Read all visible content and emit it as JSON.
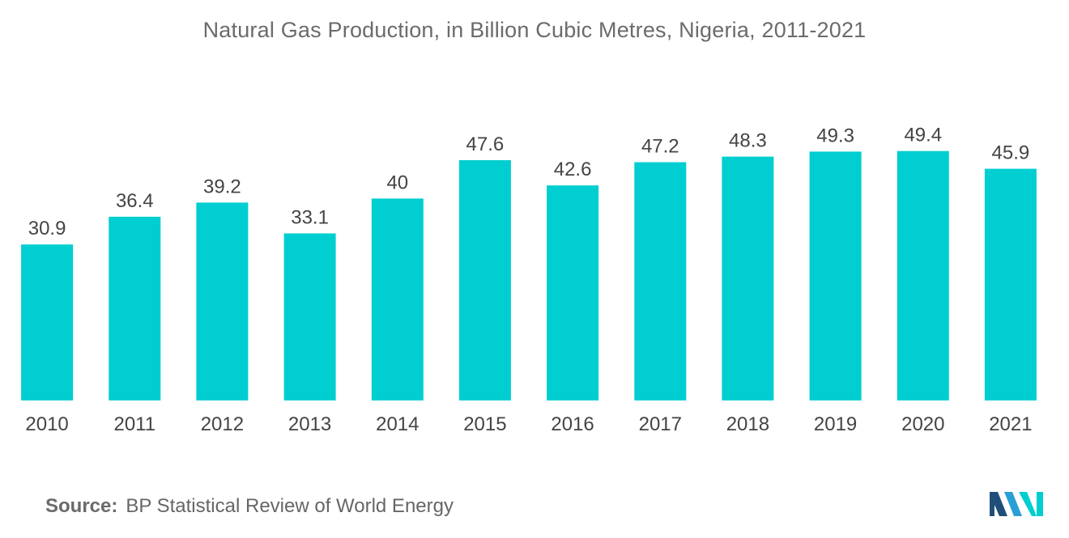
{
  "chart_data": {
    "type": "bar",
    "title": "Natural Gas Production, in Billion Cubic Metres, Nigeria, 2011-2021",
    "categories": [
      "2010",
      "2011",
      "2012",
      "2013",
      "2014",
      "2015",
      "2016",
      "2017",
      "2018",
      "2019",
      "2020",
      "2021"
    ],
    "values": [
      30.9,
      36.4,
      39.2,
      33.1,
      40,
      47.6,
      42.6,
      47.2,
      48.3,
      49.3,
      49.4,
      45.9
    ],
    "value_labels": [
      "30.9",
      "36.4",
      "39.2",
      "33.1",
      "40",
      "47.6",
      "42.6",
      "47.2",
      "48.3",
      "49.3",
      "49.4",
      "45.9"
    ],
    "xlabel": "",
    "ylabel": "",
    "ylim": [
      0,
      50
    ],
    "grid": false,
    "legend": "none",
    "bar_color": "#00ced1"
  },
  "source": {
    "prefix": "Source:",
    "text": "BP Statistical Review of World Energy"
  },
  "logo": {
    "icon": "mordor-intelligence-logo-icon",
    "colors": [
      "#1f4e79",
      "#2a9fd6",
      "#00ced1"
    ]
  }
}
